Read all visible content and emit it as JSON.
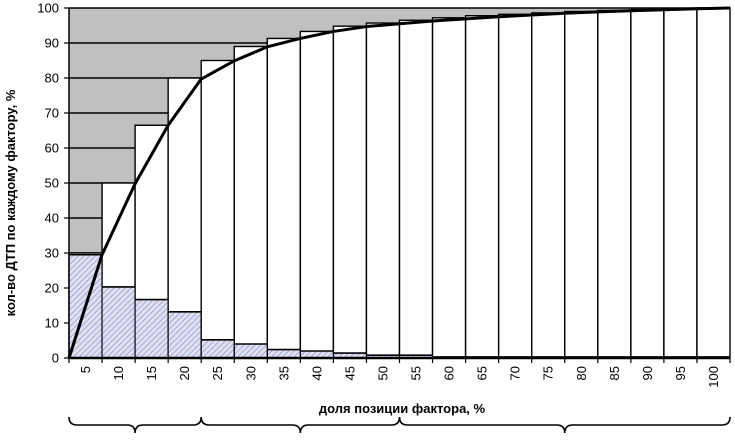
{
  "chart_data": {
    "type": "bar",
    "xlabel": "доля позиции фактора, %",
    "ylabel": "кол-во ДТП по каждому фактору, %",
    "ylim": [
      0,
      100
    ],
    "yticks": [
      0,
      10,
      20,
      30,
      40,
      50,
      60,
      70,
      80,
      90,
      100
    ],
    "categories": [
      "5",
      "10",
      "15",
      "20",
      "25",
      "30",
      "35",
      "40",
      "45",
      "50",
      "55",
      "60",
      "65",
      "70",
      "75",
      "80",
      "85",
      "90",
      "95",
      "100"
    ],
    "grid": "horizontal",
    "legend": "none",
    "series": [
      {
        "kind": "bar",
        "values": [
          29.5,
          20.3,
          16.7,
          13.2,
          5.2,
          4.0,
          2.4,
          2.0,
          1.4,
          0.8,
          0.8,
          0.3,
          0.3,
          0.3,
          0.3,
          0.3,
          0.3,
          0.3,
          0.3,
          0.3
        ]
      },
      {
        "kind": "bar",
        "values": [
          30,
          50,
          66.5,
          80,
          85,
          89,
          91.3,
          93.3,
          94.8,
          95.7,
          96.5,
          97.2,
          97.8,
          98.2,
          98.6,
          99.0,
          99.3,
          99.6,
          99.8,
          100
        ]
      },
      {
        "kind": "line",
        "x": [
          0,
          5,
          10,
          15,
          20,
          25,
          30,
          35,
          40,
          45,
          50,
          55,
          60,
          65,
          70,
          75,
          80,
          85,
          90,
          95,
          100
        ],
        "values": [
          0,
          29.5,
          49.8,
          66.5,
          79.7,
          84.9,
          88.9,
          91.3,
          93.3,
          94.7,
          95.5,
          96.3,
          96.9,
          97.5,
          98.0,
          98.5,
          98.9,
          99.2,
          99.5,
          99.8,
          100
        ]
      }
    ],
    "braces": [
      {
        "from": 0,
        "to": 20
      },
      {
        "from": 20,
        "to": 50
      },
      {
        "from": 50,
        "to": 100
      }
    ],
    "colors": {
      "background_region": "#c0c0c0",
      "bar_fill": "#ffffff",
      "hatch_fill": "#dfe0f2",
      "hatch_line": "#8486c4",
      "line": "#000000"
    }
  }
}
